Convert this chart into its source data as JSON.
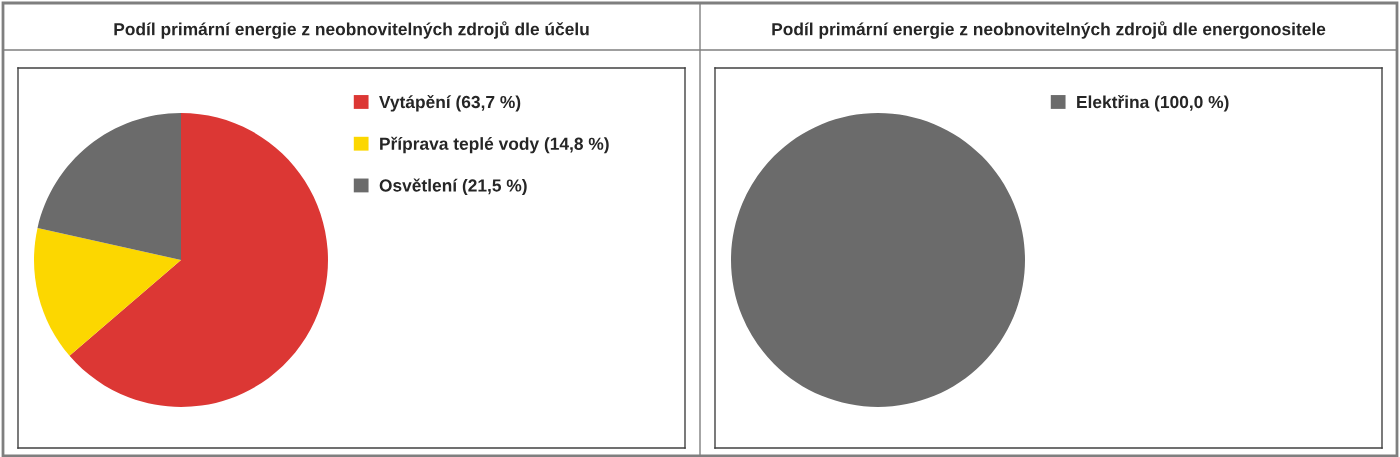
{
  "chart_data": [
    {
      "type": "pie",
      "title": "Podíl primární energie z neobnovitelných zdrojů dle účelu",
      "categories": [
        "Vytápění (63,7 %)",
        "Příprava teplé vody (14,8 %)",
        "Osvětlení (21,5 %)"
      ],
      "values": [
        63.7,
        14.8,
        21.5
      ],
      "colors": [
        "#dc3734",
        "#fcd700",
        "#6b6b6b"
      ],
      "legend": "top right"
    },
    {
      "type": "pie",
      "title": "Podíl primární energie z neobnovitelných zdrojů dle energonositele",
      "categories": [
        "Elektřina (100,0 %)"
      ],
      "values": [
        100.0
      ],
      "colors": [
        "#6b6b6b"
      ],
      "legend": "top right"
    }
  ]
}
